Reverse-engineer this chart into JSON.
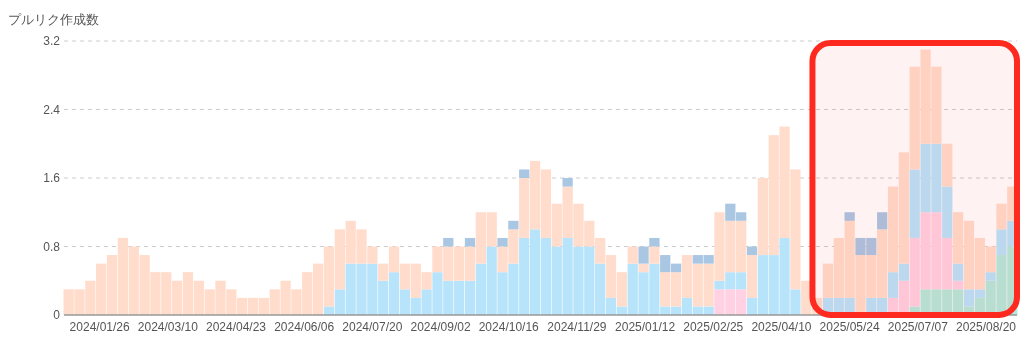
{
  "chart_data": {
    "type": "bar",
    "stacked": true,
    "ylabel": "プルリク作成数",
    "grid": "y",
    "xlim": [
      "2024-01-03",
      "2025-09-09"
    ],
    "xticks": [
      {
        "value": "2024-01-26",
        "label": "2024/01/26"
      },
      {
        "value": "2024-03-10",
        "label": "2024/03/10"
      },
      {
        "value": "2024-04-23",
        "label": "2024/04/23"
      },
      {
        "value": "2024-06-06",
        "label": "2024/06/06"
      },
      {
        "value": "2024-07-20",
        "label": "2024/07/20"
      },
      {
        "value": "2024-09-02",
        "label": "2024/09/02"
      },
      {
        "value": "2024-10-16",
        "label": "2024/10/16"
      },
      {
        "value": "2024-11-29",
        "label": "2024/11/29"
      },
      {
        "value": "2025-01-12",
        "label": "2025/01/12"
      },
      {
        "value": "2025-02-25",
        "label": "2025/02/25"
      },
      {
        "value": "2025-04-10",
        "label": "2025/04/10"
      },
      {
        "value": "2025-05-24",
        "label": "2025/05/24"
      },
      {
        "value": "2025-07-07",
        "label": "2025/07/07"
      },
      {
        "value": "2025-08-20",
        "label": "2025/08/20"
      }
    ],
    "ylim": [
      0,
      3.2
    ],
    "yticks": [
      0,
      0.8,
      1.6,
      2.4,
      3.2
    ],
    "x": [
      "2024-01-06",
      "2024-01-13",
      "2024-01-20",
      "2024-01-27",
      "2024-02-03",
      "2024-02-10",
      "2024-02-17",
      "2024-02-24",
      "2024-03-02",
      "2024-03-09",
      "2024-03-16",
      "2024-03-23",
      "2024-03-30",
      "2024-04-06",
      "2024-04-13",
      "2024-04-20",
      "2024-04-27",
      "2024-05-04",
      "2024-05-11",
      "2024-05-18",
      "2024-05-25",
      "2024-06-01",
      "2024-06-08",
      "2024-06-15",
      "2024-06-22",
      "2024-06-29",
      "2024-07-06",
      "2024-07-13",
      "2024-07-20",
      "2024-07-27",
      "2024-08-03",
      "2024-08-10",
      "2024-08-17",
      "2024-08-24",
      "2024-08-31",
      "2024-09-07",
      "2024-09-14",
      "2024-09-21",
      "2024-09-28",
      "2024-10-05",
      "2024-10-12",
      "2024-10-19",
      "2024-10-26",
      "2024-11-02",
      "2024-11-09",
      "2024-11-16",
      "2024-11-23",
      "2024-11-30",
      "2024-12-07",
      "2024-12-14",
      "2024-12-21",
      "2024-12-28",
      "2025-01-04",
      "2025-01-11",
      "2025-01-18",
      "2025-01-25",
      "2025-02-01",
      "2025-02-08",
      "2025-02-15",
      "2025-02-22",
      "2025-03-01",
      "2025-03-08",
      "2025-03-15",
      "2025-03-22",
      "2025-03-29",
      "2025-04-05",
      "2025-04-12",
      "2025-04-19",
      "2025-04-26",
      "2025-05-03",
      "2025-05-10",
      "2025-05-17",
      "2025-05-24",
      "2025-05-31",
      "2025-06-07",
      "2025-06-14",
      "2025-06-21",
      "2025-06-28",
      "2025-07-05",
      "2025-07-12",
      "2025-07-19",
      "2025-07-26",
      "2025-08-02",
      "2025-08-09",
      "2025-08-16",
      "2025-08-23",
      "2025-08-30",
      "2025-09-06"
    ],
    "series": [
      {
        "color": "#b3eadc",
        "values": [
          0,
          0,
          0,
          0,
          0,
          0,
          0,
          0,
          0,
          0,
          0,
          0,
          0,
          0,
          0,
          0,
          0,
          0,
          0,
          0,
          0,
          0,
          0,
          0,
          0,
          0,
          0,
          0,
          0,
          0,
          0,
          0,
          0,
          0,
          0,
          0,
          0,
          0,
          0,
          0,
          0,
          0,
          0,
          0,
          0,
          0,
          0,
          0,
          0,
          0,
          0,
          0,
          0,
          0,
          0,
          0,
          0,
          0,
          0,
          0,
          0,
          0,
          0,
          0,
          0,
          0,
          0,
          0,
          0,
          0,
          0,
          0,
          0,
          0,
          0,
          0,
          0,
          0,
          0.1,
          0.3,
          0.3,
          0.3,
          0.3,
          0.1,
          0.2,
          0.4,
          0.7,
          0.8
        ]
      },
      {
        "color": "#ffd1e3",
        "values": [
          0,
          0,
          0,
          0,
          0,
          0,
          0,
          0,
          0,
          0,
          0,
          0,
          0,
          0,
          0,
          0,
          0,
          0,
          0,
          0,
          0,
          0,
          0,
          0,
          0,
          0,
          0,
          0,
          0,
          0,
          0,
          0,
          0,
          0,
          0,
          0,
          0,
          0,
          0,
          0,
          0,
          0,
          0,
          0,
          0,
          0,
          0,
          0,
          0,
          0,
          0,
          0,
          0,
          0,
          0,
          0,
          0,
          0,
          0,
          0,
          0.3,
          0.3,
          0.3,
          0,
          0,
          0,
          0,
          0,
          0,
          0,
          0,
          0,
          0,
          0,
          0,
          0,
          0.2,
          0.4,
          0.8,
          0.9,
          0.9,
          0.6,
          0.1,
          0,
          0,
          0,
          0,
          0
        ]
      },
      {
        "color": "#b8e4fb",
        "values": [
          0,
          0,
          0,
          0,
          0,
          0,
          0,
          0,
          0,
          0,
          0,
          0,
          0,
          0,
          0,
          0,
          0,
          0,
          0,
          0,
          0,
          0,
          0,
          0,
          0.1,
          0.3,
          0.6,
          0.6,
          0.6,
          0.4,
          0.5,
          0.3,
          0.2,
          0.3,
          0.5,
          0.4,
          0.4,
          0.4,
          0.6,
          0.8,
          0.5,
          0.6,
          0.9,
          1.0,
          0.9,
          0.8,
          0.9,
          0.8,
          0.8,
          0.6,
          0.2,
          0.1,
          0.6,
          0.5,
          0.6,
          0.1,
          0.1,
          0.2,
          0.1,
          0.1,
          0.1,
          0.2,
          0.2,
          0.2,
          0.7,
          0.7,
          0.9,
          0.3,
          0,
          0,
          0.2,
          0.2,
          0.2,
          0,
          0.2,
          0.2,
          0.3,
          0.2,
          0.8,
          0.8,
          0.8,
          0.6,
          0.2,
          0.2,
          0.1,
          0.1,
          0.3,
          0.3
        ]
      },
      {
        "color": "#ffdccb",
        "values": [
          0.3,
          0.3,
          0.4,
          0.6,
          0.7,
          0.9,
          0.8,
          0.7,
          0.5,
          0.5,
          0.4,
          0.5,
          0.4,
          0.3,
          0.4,
          0.3,
          0.2,
          0.2,
          0.2,
          0.3,
          0.4,
          0.3,
          0.5,
          0.6,
          0.7,
          0.7,
          0.5,
          0.4,
          0.2,
          0.2,
          0.3,
          0.3,
          0.4,
          0.2,
          0.3,
          0.4,
          0.4,
          0.4,
          0.6,
          0.4,
          0.3,
          0.4,
          0.7,
          0.8,
          0.8,
          0.5,
          0.6,
          0.5,
          0.3,
          0.3,
          0.5,
          0.4,
          0.2,
          0.1,
          0.2,
          0.4,
          0.4,
          0.5,
          0.5,
          0.5,
          0.8,
          0.6,
          0.6,
          0.5,
          0.9,
          1.4,
          1.3,
          1.4,
          0.4,
          0.2,
          0.4,
          0.7,
          0.9,
          0.7,
          0.5,
          0.8,
          1.0,
          1.3,
          1.2,
          1.1,
          0.9,
          0.5,
          0.6,
          0.8,
          0.6,
          0.3,
          0.3,
          0.4
        ]
      },
      {
        "color": "#a9c6e3",
        "values": [
          0,
          0,
          0,
          0,
          0,
          0,
          0,
          0,
          0,
          0,
          0,
          0,
          0,
          0,
          0,
          0,
          0,
          0,
          0,
          0,
          0,
          0,
          0,
          0,
          0,
          0,
          0,
          0,
          0,
          0,
          0,
          0,
          0,
          0,
          0,
          0.1,
          0,
          0.1,
          0,
          0,
          0.1,
          0.1,
          0.1,
          0,
          0,
          0,
          0.1,
          0,
          0,
          0,
          0,
          0,
          0,
          0.2,
          0.1,
          0.2,
          0.1,
          0,
          0.1,
          0.1,
          0,
          0.2,
          0.1,
          0.1,
          0,
          0,
          0,
          0,
          0,
          0,
          0,
          0,
          0.1,
          0.2,
          0.2,
          0.2,
          0,
          0,
          0,
          0,
          0,
          0,
          0,
          0,
          0,
          0,
          0,
          0
        ]
      }
    ],
    "bands": [
      {
        "axis": "x",
        "from": "2025-04-30",
        "to": "2025-09-09",
        "color": "#ff2a1f"
      }
    ]
  }
}
